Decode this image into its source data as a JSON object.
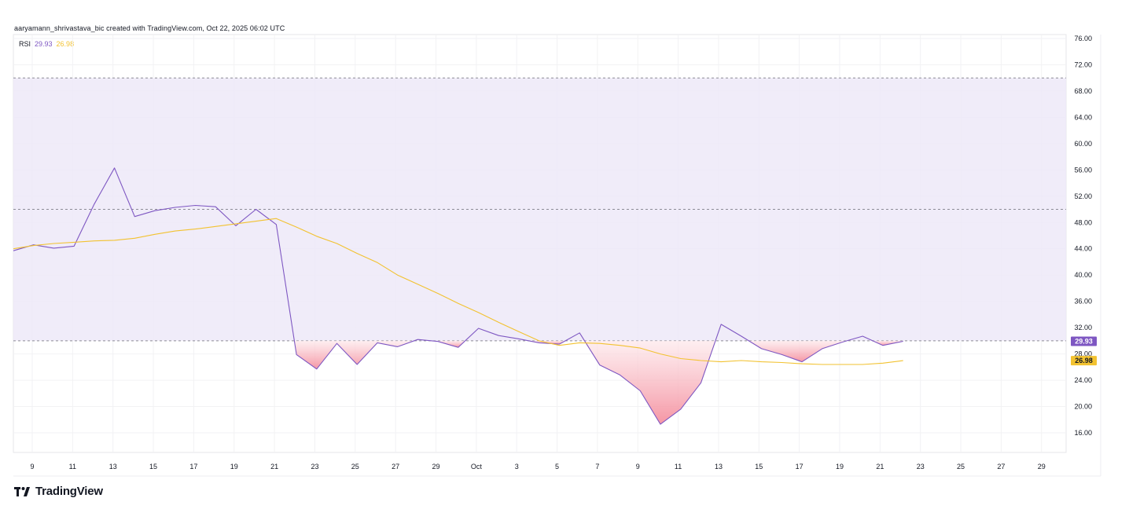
{
  "attribution": "aaryamann_shrivastava_bic created with TradingView.com, Oct 22, 2025 06:02 UTC",
  "legend": {
    "indicator": "RSI",
    "rsi_value": "29.93",
    "ma_value": "26.98"
  },
  "brand": "TradingView",
  "chart_data": {
    "type": "line",
    "ylim": [
      14,
      77
    ],
    "y_ticks": [
      "76.00",
      "72.00",
      "68.00",
      "64.00",
      "60.00",
      "56.00",
      "52.00",
      "48.00",
      "44.00",
      "40.00",
      "36.00",
      "32.00",
      "28.00",
      "24.00",
      "20.00",
      "16.00"
    ],
    "x_ticks": [
      "9",
      "11",
      "13",
      "15",
      "17",
      "19",
      "21",
      "23",
      "25",
      "27",
      "29",
      "Oct",
      "3",
      "5",
      "7",
      "9",
      "11",
      "13",
      "15",
      "17",
      "19",
      "21",
      "23",
      "25",
      "27",
      "29"
    ],
    "bands": {
      "upper": 70,
      "middle": 50,
      "lower": 30
    },
    "series": [
      {
        "color": "#7e57c2",
        "values": [
          43.7,
          44.6,
          44.1,
          44.4,
          50.8,
          56.3,
          48.9,
          49.8,
          50.3,
          50.6,
          50.4,
          47.5,
          50.0,
          47.7,
          27.9,
          25.7,
          29.6,
          26.4,
          29.7,
          29.1,
          30.2,
          29.9,
          29.0,
          31.9,
          30.8,
          30.3,
          29.7,
          29.5,
          31.2,
          26.3,
          24.8,
          22.4,
          17.3,
          19.6,
          23.6,
          32.5,
          30.7,
          28.8,
          27.9,
          26.8,
          28.8,
          29.8,
          30.7,
          29.3,
          29.93
        ]
      },
      {
        "color": "#f2c230",
        "values": [
          44.0,
          44.5,
          44.8,
          45.0,
          45.2,
          45.3,
          45.6,
          46.2,
          46.7,
          47.0,
          47.4,
          47.8,
          48.2,
          48.6,
          47.3,
          45.9,
          44.8,
          43.3,
          41.9,
          40.0,
          38.6,
          37.2,
          35.7,
          34.3,
          32.8,
          31.4,
          30.0,
          29.3,
          29.7,
          29.6,
          29.3,
          28.9,
          28.0,
          27.3,
          27.0,
          26.8,
          27.0,
          26.8,
          26.7,
          26.5,
          26.4,
          26.4,
          26.4,
          26.6,
          26.98
        ]
      }
    ],
    "last_value_labels": [
      {
        "value": 29.93,
        "text": "29.93",
        "color": "#7e57c2"
      },
      {
        "value": 26.98,
        "text": "26.98",
        "color": "#f2c230"
      }
    ],
    "colors": {
      "band_fill": "#ede9f8",
      "oversold_fill": "#f7a7b2",
      "grid": "#f2f2f4",
      "axis_text": "#131722"
    }
  }
}
